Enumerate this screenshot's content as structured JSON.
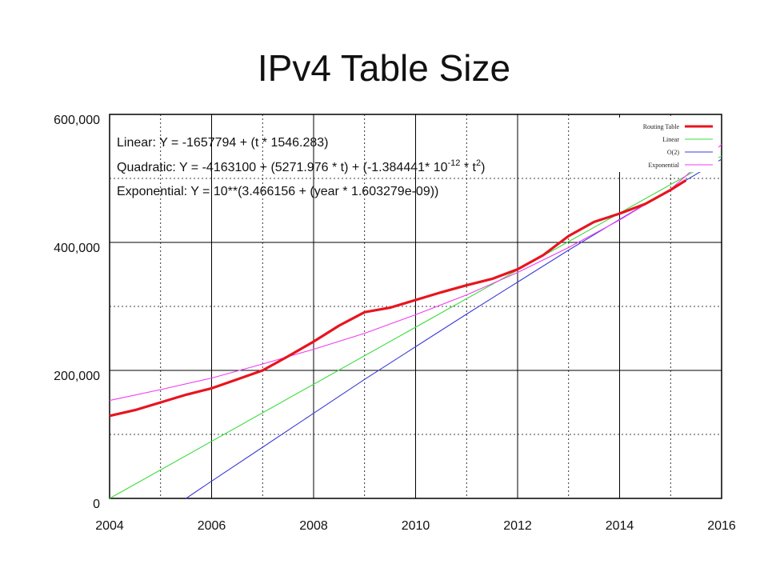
{
  "slide": {
    "title": "IPv4 Table Size"
  },
  "chart_data": {
    "type": "line",
    "title": "IPv4 Table Size",
    "xlabel": "",
    "ylabel": "",
    "xlim": [
      2004,
      2016
    ],
    "ylim": [
      0,
      600000
    ],
    "grid": true,
    "legend_position": "top-right",
    "x_ticks": [
      "2004",
      "2006",
      "2008",
      "2010",
      "2012",
      "2014",
      "2016"
    ],
    "y_ticks": [
      "0",
      "200,000",
      "400,000",
      "600,000"
    ],
    "equations": {
      "linear": "Linear: Y = -1657794 + (t * 1546.283)",
      "quadratic_prefix": "Quadratic: Y  = -4163100 + (5271.976  * t) + (-1.384441*  10",
      "quadratic_exp": "-12",
      "quadratic_mid": " * t",
      "quadratic_sq": "2",
      "quadratic_end": ")",
      "exponential": "Exponential: Y = 10**(3.466156 + (year * 1.603279e-09))"
    },
    "series": [
      {
        "name": "Routing Table",
        "color": "#e8141e",
        "x": [
          2004.0,
          2004.5,
          2005.0,
          2005.5,
          2006.0,
          2006.5,
          2007.0,
          2007.5,
          2008.0,
          2008.5,
          2009.0,
          2009.5,
          2010.0,
          2010.5,
          2011.0,
          2011.5,
          2012.0,
          2012.5,
          2013.0,
          2013.5,
          2014.0,
          2014.5,
          2015.0,
          2015.3
        ],
        "y": [
          129000,
          138000,
          150000,
          162000,
          172000,
          186000,
          200000,
          222000,
          245000,
          270000,
          291000,
          298000,
          310000,
          322000,
          333000,
          343000,
          358000,
          380000,
          410000,
          432000,
          445000,
          460000,
          482000,
          497000
        ]
      },
      {
        "name": "Linear",
        "color": "#3ddc3d",
        "x": [
          2004.0,
          2016.0
        ],
        "y": [
          0,
          535000
        ]
      },
      {
        "name": "O(2)",
        "color": "#3c3cd8",
        "x": [
          2005.5,
          2006.0,
          2007.0,
          2008.0,
          2009.0,
          2010.0,
          2011.0,
          2012.0,
          2013.0,
          2014.0,
          2015.0,
          2016.0
        ],
        "y": [
          0,
          27000,
          80000,
          133000,
          186000,
          237000,
          288000,
          338000,
          388000,
          436000,
          483000,
          530000
        ]
      },
      {
        "name": "Exponential",
        "color": "#f03cf0",
        "x": [
          2004.0,
          2005.0,
          2006.0,
          2007.0,
          2008.0,
          2009.0,
          2010.0,
          2011.0,
          2012.0,
          2013.0,
          2014.0,
          2015.0,
          2016.0
        ],
        "y": [
          153000,
          170000,
          188000,
          210000,
          233000,
          258000,
          287000,
          318000,
          353000,
          392000,
          435000,
          483000,
          553000
        ]
      }
    ]
  }
}
